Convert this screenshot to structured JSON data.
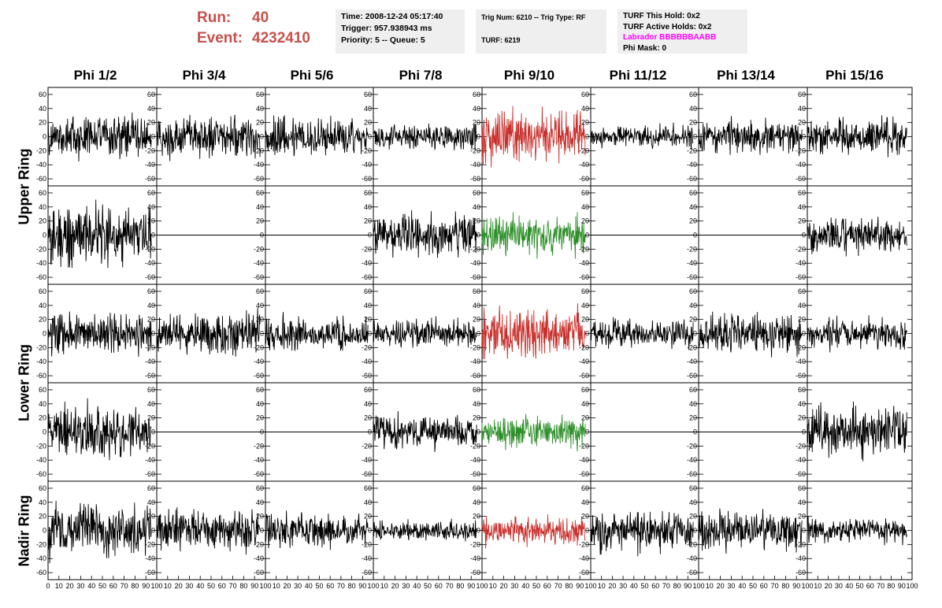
{
  "header": {
    "run_label": "Run:",
    "run_value": "40",
    "event_label": "Event:",
    "event_value": "4232410",
    "time_line": "Time: 2008-12-24 05:17:40",
    "trigger_line": "Trigger: 957.938943 ms",
    "priority_line": "Priority: 5 -- Queue: 5",
    "trig_line": "Trig Num: 6210 -- Trig Type: RF",
    "turf_line": "TURF: 6219",
    "turf_hold": "TURF This Hold: 0x2",
    "turf_active": "TURF Active Holds: 0x2",
    "labrador": "Labrador BBBBBBAABB",
    "phi_mask": "Phi Mask: 0",
    "colors": {
      "run_text": "#c8504b",
      "labrador": "#ff00ff",
      "box_bg": "#efefef"
    }
  },
  "columns": [
    "Phi 1/2",
    "Phi 3/4",
    "Phi 5/6",
    "Phi 7/8",
    "Phi 9/10",
    "Phi 11/12",
    "Phi 13/14",
    "Phi 15/16"
  ],
  "rows": [
    {
      "label": "Upper Ring",
      "span": [
        0,
        1
      ]
    },
    {
      "label": "Lower Ring",
      "span": [
        2,
        3
      ]
    },
    {
      "label": "Nadir Ring",
      "span": [
        4,
        4
      ]
    }
  ],
  "chart_data": {
    "type": "line",
    "xlim": [
      0,
      100
    ],
    "ylim": [
      -70,
      70
    ],
    "x_ticks": [
      0,
      10,
      20,
      30,
      40,
      50,
      60,
      70,
      80,
      90,
      100
    ],
    "y_ticks": [
      -60,
      -40,
      -20,
      0,
      20,
      40,
      60
    ],
    "samples_per_trace": 260,
    "colors": {
      "default": "#000000",
      "trigger_upper": "#c8302c",
      "trigger_lower": "#2e8f2a"
    },
    "panel_rows": [
      {
        "name": "Upper Ring A",
        "traces": [
          {
            "amp": 18,
            "flat": false,
            "color": "default"
          },
          {
            "amp": 17,
            "flat": false,
            "color": "default"
          },
          {
            "amp": 17,
            "flat": false,
            "color": "default"
          },
          {
            "amp": 11,
            "flat": false,
            "color": "default"
          },
          {
            "amp": 22,
            "flat": false,
            "color": "trigger_upper"
          },
          {
            "amp": 9,
            "flat": false,
            "color": "default"
          },
          {
            "amp": 14,
            "flat": false,
            "color": "default"
          },
          {
            "amp": 14,
            "flat": false,
            "color": "default"
          }
        ]
      },
      {
        "name": "Upper Ring B",
        "traces": [
          {
            "amp": 25,
            "flat": false,
            "color": "default"
          },
          {
            "amp": 0,
            "flat": true,
            "color": "default"
          },
          {
            "amp": 0,
            "flat": true,
            "color": "default"
          },
          {
            "amp": 17,
            "flat": false,
            "color": "default"
          },
          {
            "amp": 16,
            "flat": false,
            "color": "trigger_lower"
          },
          {
            "amp": 0,
            "flat": true,
            "color": "default"
          },
          {
            "amp": 0,
            "flat": true,
            "color": "default"
          },
          {
            "amp": 14,
            "flat": false,
            "color": "default"
          }
        ]
      },
      {
        "name": "Lower Ring A",
        "traces": [
          {
            "amp": 18,
            "flat": false,
            "color": "default"
          },
          {
            "amp": 17,
            "flat": false,
            "color": "default"
          },
          {
            "amp": 13,
            "flat": false,
            "color": "default"
          },
          {
            "amp": 11,
            "flat": false,
            "color": "default"
          },
          {
            "amp": 21,
            "flat": false,
            "color": "trigger_upper"
          },
          {
            "amp": 11,
            "flat": false,
            "color": "default"
          },
          {
            "amp": 18,
            "flat": false,
            "color": "default"
          },
          {
            "amp": 12,
            "flat": false,
            "color": "default"
          }
        ]
      },
      {
        "name": "Lower Ring B",
        "traces": [
          {
            "amp": 22,
            "flat": false,
            "color": "default"
          },
          {
            "amp": 0,
            "flat": true,
            "color": "default"
          },
          {
            "amp": 0,
            "flat": true,
            "color": "default"
          },
          {
            "amp": 14,
            "flat": false,
            "color": "default"
          },
          {
            "amp": 13,
            "flat": false,
            "color": "trigger_lower"
          },
          {
            "amp": 0,
            "flat": true,
            "color": "default"
          },
          {
            "amp": 0,
            "flat": true,
            "color": "default"
          },
          {
            "amp": 20,
            "flat": false,
            "color": "default"
          }
        ]
      },
      {
        "name": "Nadir Ring",
        "traces": [
          {
            "amp": 22,
            "flat": false,
            "color": "default"
          },
          {
            "amp": 17,
            "flat": false,
            "color": "default"
          },
          {
            "amp": 14,
            "flat": false,
            "color": "default"
          },
          {
            "amp": 8,
            "flat": false,
            "color": "default"
          },
          {
            "amp": 12,
            "flat": false,
            "color": "trigger_upper"
          },
          {
            "amp": 17,
            "flat": false,
            "color": "default"
          },
          {
            "amp": 16,
            "flat": false,
            "color": "default"
          },
          {
            "amp": 10,
            "flat": false,
            "color": "default"
          }
        ]
      }
    ]
  }
}
